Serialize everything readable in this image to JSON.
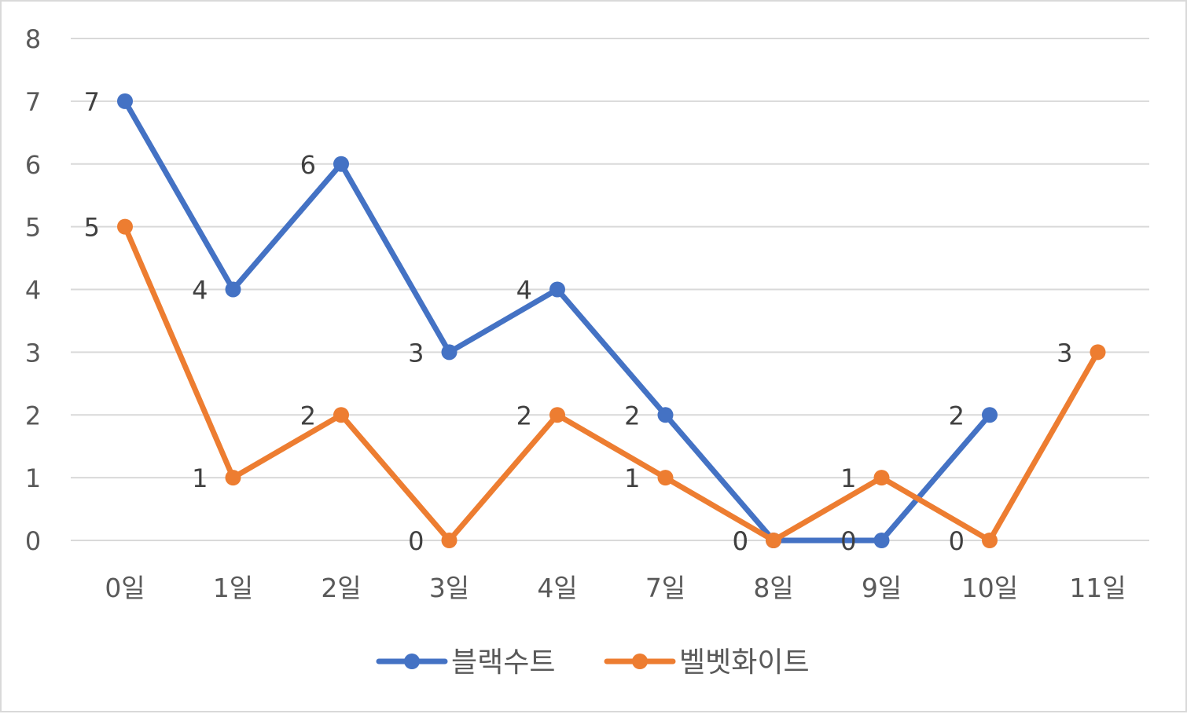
{
  "chart_data": {
    "type": "line",
    "title": "",
    "xlabel": "",
    "ylabel": "",
    "categories": [
      "0일",
      "1일",
      "2일",
      "3일",
      "4일",
      "7일",
      "8일",
      "9일",
      "10일",
      "11일"
    ],
    "ylim": [
      0,
      8
    ],
    "yticks": [
      "0",
      "1",
      "2",
      "3",
      "4",
      "5",
      "6",
      "7",
      "8"
    ],
    "grid": true,
    "legend_position": "bottom",
    "series": [
      {
        "name": "블랙수트",
        "color": "#4472C4",
        "values": [
          7,
          4,
          6,
          3,
          4,
          2,
          0,
          0,
          2,
          null
        ]
      },
      {
        "name": "벨벳화이트",
        "color": "#ED7D31",
        "values": [
          5,
          1,
          2,
          0,
          2,
          1,
          0,
          1,
          0,
          3
        ]
      }
    ]
  }
}
